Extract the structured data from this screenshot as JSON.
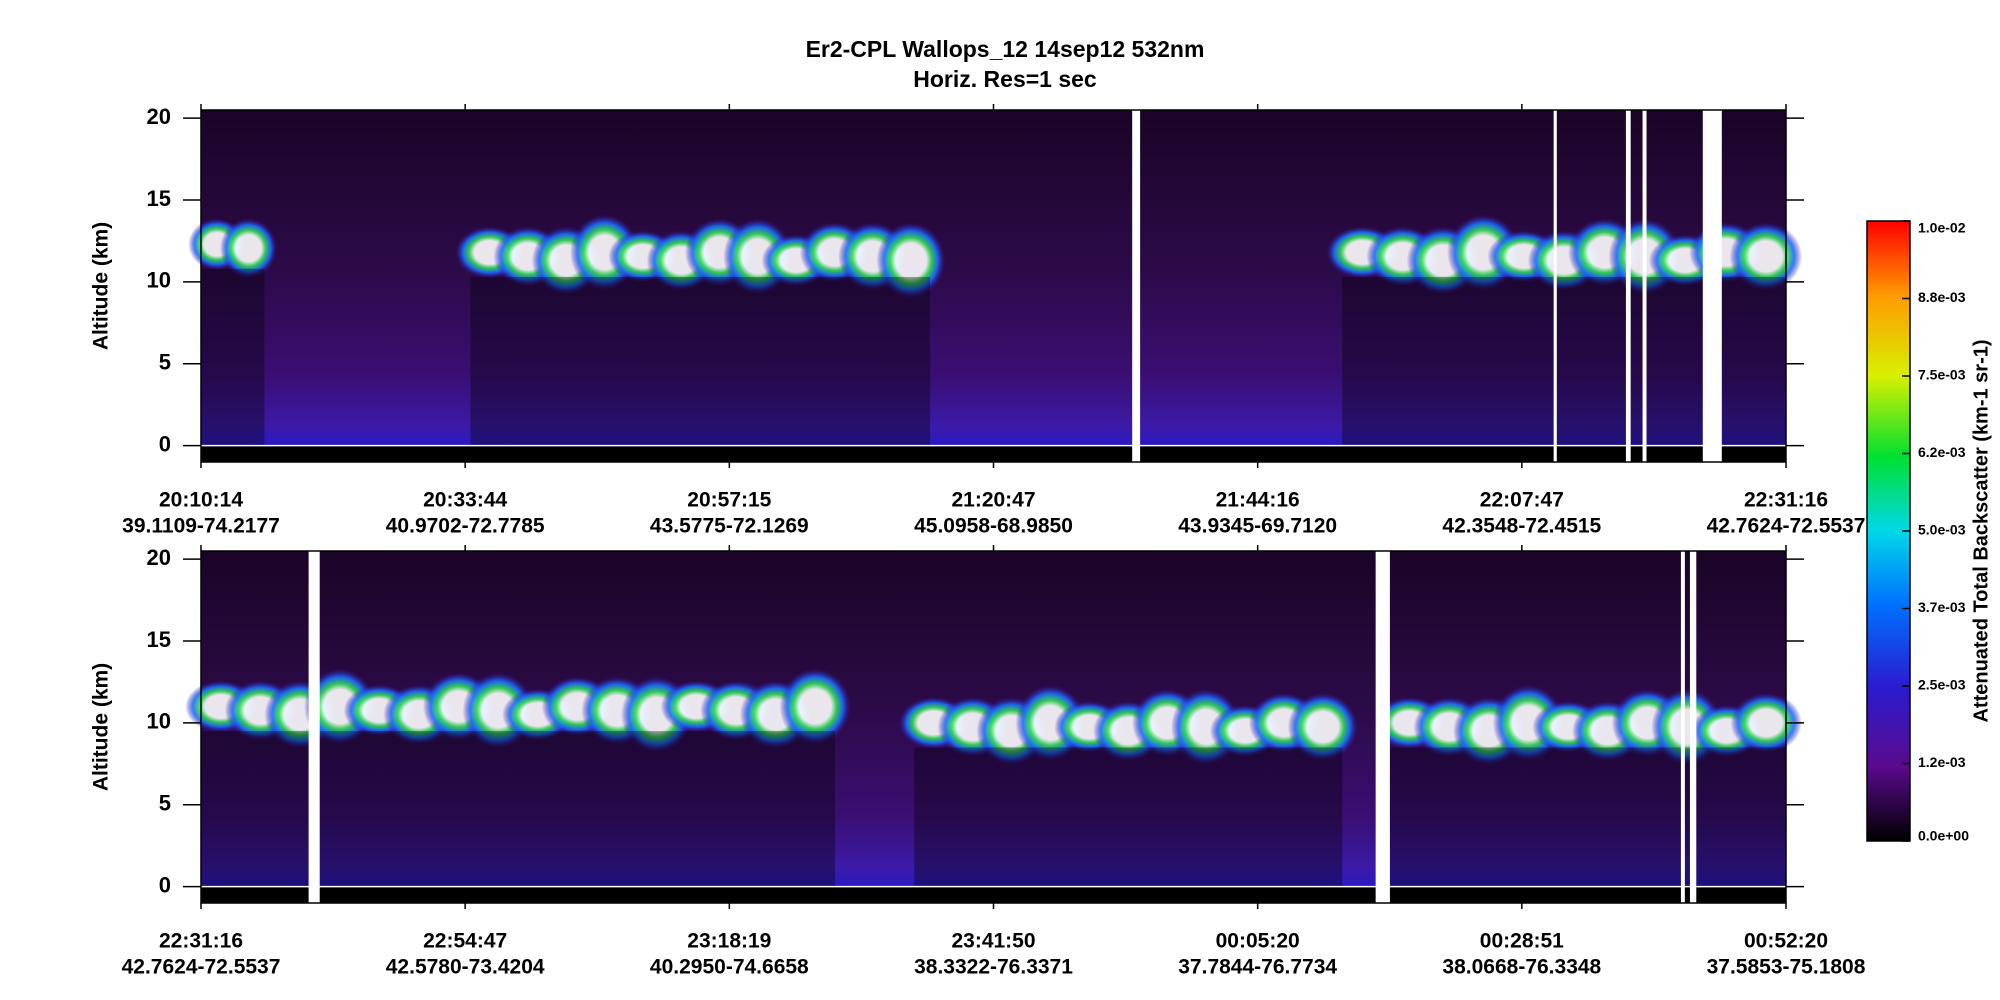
{
  "chart_data": {
    "type": "curtain",
    "title": "Er2-CPL  Wallops_12  14sep12  532nm",
    "subtitle": "Horiz. Res=1 sec",
    "panels": [
      {
        "y_label": "Altitude (km)",
        "ylim": [
          -1,
          20.5
        ],
        "yticks": [
          0,
          5,
          10,
          15,
          20
        ],
        "x_labels": [
          {
            "time": "20:10:14",
            "location": "39.1109-74.2177"
          },
          {
            "time": "20:33:44",
            "location": "40.9702-72.7785"
          },
          {
            "time": "20:57:15",
            "location": "43.5775-72.1269"
          },
          {
            "time": "21:20:47",
            "location": "45.0958-68.9850"
          },
          {
            "time": "21:44:16",
            "location": "43.9345-69.7120"
          },
          {
            "time": "22:07:47",
            "location": "42.3548-72.4515"
          },
          {
            "time": "22:31:16",
            "location": "42.7624-72.5537"
          }
        ]
      },
      {
        "y_label": "Altitude (km)",
        "ylim": [
          -1,
          20.5
        ],
        "yticks": [
          0,
          5,
          10,
          15,
          20
        ],
        "x_labels": [
          {
            "time": "22:31:16",
            "location": "42.7624-72.5537"
          },
          {
            "time": "22:54:47",
            "location": "42.5780-73.4204"
          },
          {
            "time": "23:18:19",
            "location": "40.2950-74.6658"
          },
          {
            "time": "23:41:50",
            "location": "38.3322-76.3371"
          },
          {
            "time": "00:05:20",
            "location": "37.7844-76.7734"
          },
          {
            "time": "00:28:51",
            "location": "38.0668-76.3348"
          },
          {
            "time": "00:52:20",
            "location": "37.5853-75.1808"
          }
        ]
      }
    ],
    "colorbar": {
      "title": "Attenuated Total Backscatter (km-1 sr-1)",
      "clim": [
        0,
        0.01
      ],
      "ticks": [
        {
          "value": 0,
          "label": "0.0e+00"
        },
        {
          "value": 0.00125,
          "label": "1.2e-03"
        },
        {
          "value": 0.0025,
          "label": "2.5e-03"
        },
        {
          "value": 0.00375,
          "label": "3.7e-03"
        },
        {
          "value": 0.005,
          "label": "5.0e-03"
        },
        {
          "value": 0.00625,
          "label": "6.2e-03"
        },
        {
          "value": 0.0075,
          "label": "7.5e-03"
        },
        {
          "value": 0.00875,
          "label": "8.8e-03"
        },
        {
          "value": 0.01,
          "label": "1.0e-02"
        }
      ]
    }
  }
}
